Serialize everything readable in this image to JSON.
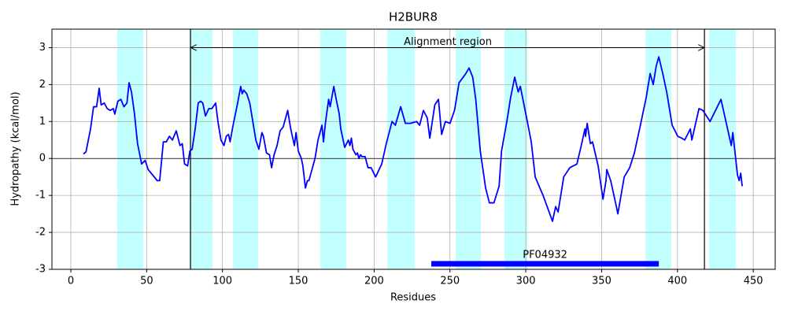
{
  "chart_data": {
    "type": "line",
    "title": "H2BUR8",
    "xlabel": "Residues",
    "ylabel": "Hydropathy (kcal/mol)",
    "color": "#0000ff",
    "x": [
      8.3,
      10,
      13,
      15,
      17,
      18.7,
      20,
      22,
      24,
      26,
      28,
      29,
      31,
      33,
      35,
      37,
      38.4,
      40,
      42,
      44,
      46.7,
      49,
      51,
      53,
      55,
      57,
      58.6,
      61,
      63,
      65,
      67,
      69.5,
      72,
      73.5,
      75,
      77,
      78.5,
      80,
      82,
      84,
      85.6,
      87,
      88.8,
      91,
      93,
      95.5,
      97,
      99,
      101,
      102.5,
      104,
      105,
      107,
      110,
      112,
      113,
      114,
      116,
      118,
      120,
      122,
      124,
      126,
      127,
      129,
      131,
      132.4,
      134,
      136,
      138,
      140,
      143,
      145,
      147.4,
      148.5,
      150,
      152,
      153,
      154.7,
      156,
      157,
      159,
      161,
      163,
      165.6,
      166.6,
      168,
      170,
      171,
      173.4,
      175,
      177,
      178,
      180.6,
      183,
      184,
      185,
      186,
      188,
      189,
      190,
      191,
      192,
      194,
      196,
      198,
      201,
      205,
      208,
      211.8,
      214,
      217.5,
      220.6,
      224,
      228,
      230,
      232.5,
      235,
      236.7,
      240,
      242.4,
      244.5,
      247,
      250,
      253,
      256,
      260.5,
      262.6,
      265,
      267,
      270,
      273.5,
      276,
      279,
      282.4,
      284,
      287.5,
      290,
      292.7,
      295,
      296.4,
      301,
      303.6,
      306.2,
      309.3,
      311.4,
      314.5,
      317.6,
      319.7,
      321.3,
      325,
      329,
      333.7,
      336.3,
      339,
      339.4,
      340.5,
      342.6,
      344,
      347.7,
      350.9,
      352.9,
      353.4,
      356,
      359.7,
      360.7,
      364.9,
      368.5,
      371.6,
      375.3,
      379.4,
      382,
      384,
      386,
      387.7,
      390.3,
      392.9,
      396.5,
      400.2,
      402.8,
      404.8,
      408.5,
      409.5,
      414.2,
      416.8,
      421.5,
      428.7,
      435.5,
      436.5,
      439.6,
      440.7,
      441.7,
      442.7
    ],
    "values": [
      0.12,
      0.18,
      0.8,
      1.4,
      1.4,
      1.9,
      1.45,
      1.5,
      1.35,
      1.3,
      1.35,
      1.2,
      1.55,
      1.6,
      1.4,
      1.5,
      2.05,
      1.8,
      1.2,
      0.4,
      -0.15,
      -0.05,
      -0.3,
      -0.4,
      -0.5,
      -0.6,
      -0.6,
      0.45,
      0.45,
      0.6,
      0.5,
      0.75,
      0.35,
      0.4,
      -0.15,
      -0.2,
      0.2,
      0.25,
      0.8,
      1.5,
      1.55,
      1.5,
      1.15,
      1.35,
      1.35,
      1.5,
      1.0,
      0.5,
      0.35,
      0.6,
      0.65,
      0.45,
      0.9,
      1.5,
      1.95,
      1.75,
      1.85,
      1.75,
      1.5,
      1.0,
      0.5,
      0.25,
      0.7,
      0.6,
      0.15,
      0.1,
      -0.25,
      0.1,
      0.35,
      0.75,
      0.85,
      1.3,
      0.8,
      0.35,
      0.7,
      0.2,
      0.0,
      -0.2,
      -0.8,
      -0.6,
      -0.6,
      -0.3,
      0.0,
      0.5,
      0.9,
      0.45,
      1.0,
      1.6,
      1.4,
      1.95,
      1.6,
      1.2,
      0.8,
      0.3,
      0.5,
      0.35,
      0.55,
      0.25,
      0.1,
      0.15,
      0.0,
      0.1,
      0.05,
      0.05,
      -0.25,
      -0.25,
      -0.5,
      -0.15,
      0.4,
      1.0,
      0.9,
      1.4,
      0.95,
      0.95,
      1.0,
      0.9,
      1.3,
      1.1,
      0.55,
      1.45,
      1.6,
      0.65,
      1.0,
      0.95,
      1.3,
      2.05,
      2.3,
      2.45,
      2.2,
      1.6,
      0.2,
      -0.8,
      -1.2,
      -1.2,
      -0.75,
      0.2,
      1.0,
      1.65,
      2.2,
      1.8,
      1.95,
      1.0,
      0.45,
      -0.5,
      -0.8,
      -1.0,
      -1.35,
      -1.7,
      -1.3,
      -1.45,
      -0.5,
      -0.25,
      -0.15,
      0.3,
      0.8,
      0.6,
      0.95,
      0.4,
      0.45,
      -0.2,
      -1.1,
      -0.6,
      -0.3,
      -0.6,
      -1.3,
      -1.5,
      -0.5,
      -0.25,
      0.15,
      0.85,
      1.65,
      2.3,
      2.0,
      2.5,
      2.75,
      2.3,
      1.8,
      0.9,
      0.6,
      0.55,
      0.5,
      0.8,
      0.5,
      1.35,
      1.3,
      1.0,
      1.6,
      0.35,
      0.7,
      -0.45,
      -0.6,
      -0.4,
      -0.75
    ],
    "xlim": [
      -12.45,
      464.45
    ],
    "ylim": [
      -3,
      3.5
    ],
    "xticks": [
      0,
      50,
      100,
      150,
      200,
      250,
      300,
      350,
      400,
      450
    ],
    "yticks": [
      -3,
      -2,
      -1,
      0,
      1,
      2,
      3
    ],
    "grid": true,
    "hline": 0,
    "regions": [
      [
        30.6,
        47.8
      ],
      [
        78.4,
        93.4
      ],
      [
        106.9,
        123.5
      ],
      [
        164.5,
        181.7
      ],
      [
        208.6,
        226.8
      ],
      [
        253.8,
        270.4
      ],
      [
        286,
        301
      ],
      [
        378.9,
        396
      ],
      [
        420.9,
        438.6
      ]
    ],
    "region_color": "#c2ffff",
    "vlines": [
      78.9,
      417.8
    ],
    "arrow_y": 3,
    "annotation": {
      "text": "Alignment region",
      "x": 248.6,
      "y": 3.15
    },
    "domain": {
      "label": "PF04932",
      "start": 237.7,
      "end": 387.7,
      "y": -2.85,
      "color": "#0000ff"
    }
  }
}
